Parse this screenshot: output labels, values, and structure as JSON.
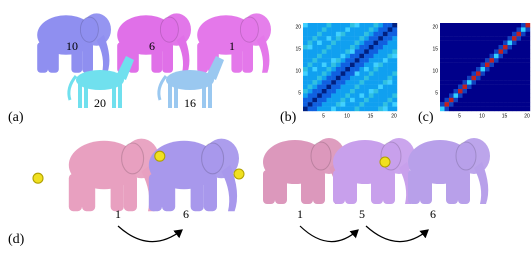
{
  "panel_a": {
    "label": "(a)",
    "elephants": [
      10,
      6,
      1
    ],
    "horses": [
      20,
      16
    ]
  },
  "panel_b": {
    "label": "(b)",
    "yticks": [
      20,
      15,
      10,
      5
    ],
    "xticks": [
      5,
      10,
      15,
      20
    ]
  },
  "panel_c": {
    "label": "(c)",
    "yticks": [
      20,
      15,
      10,
      5
    ],
    "xticks": [
      5,
      10,
      15,
      20
    ]
  },
  "panel_d": {
    "label": "(d)",
    "left": [
      1,
      6
    ],
    "right": [
      1,
      5,
      6
    ]
  }
}
